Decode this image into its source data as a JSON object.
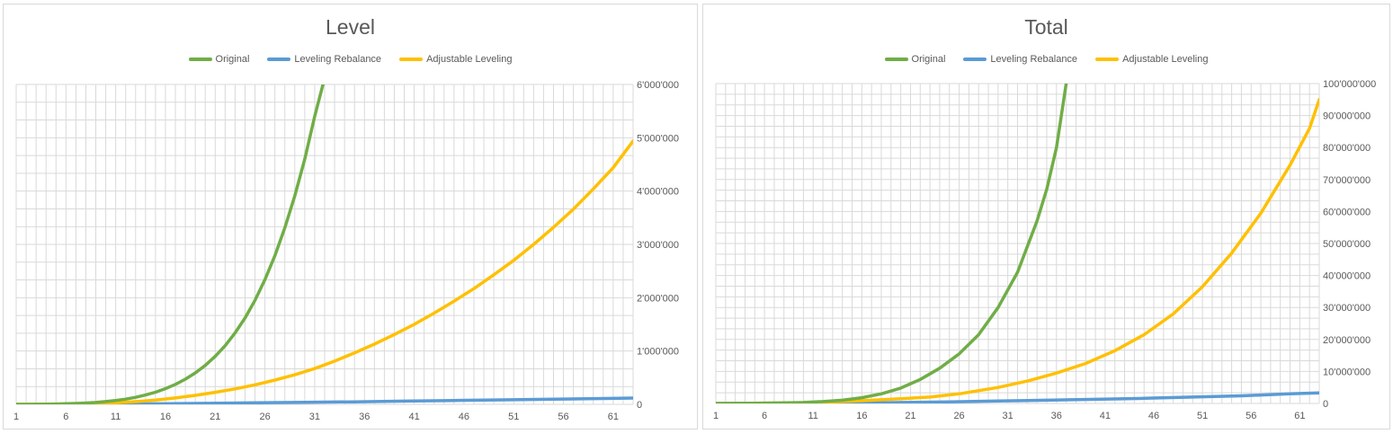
{
  "colors": {
    "original": "#70ad47",
    "leveling_rebalance": "#5b9bd5",
    "adjustable_leveling": "#ffc000",
    "gridline": "#d9d9d9",
    "text": "#595959"
  },
  "chart_data": [
    {
      "type": "line",
      "title": "Level",
      "xlabel": "",
      "ylabel": "",
      "x_tick_labels": [
        "1",
        "6",
        "11",
        "16",
        "21",
        "26",
        "31",
        "36",
        "41",
        "46",
        "51",
        "56",
        "61"
      ],
      "y_tick_labels": [
        "0",
        "1'000'000",
        "2'000'000",
        "3'000'000",
        "4'000'000",
        "5'000'000",
        "6'000'000"
      ],
      "xlim": [
        1,
        63
      ],
      "ylim": [
        0,
        6000000
      ],
      "grid": true,
      "legend_position": "top",
      "y_axis_side": "right",
      "series": [
        {
          "name": "Original",
          "color": "#70ad47",
          "x": [
            1,
            2,
            3,
            4,
            5,
            6,
            7,
            8,
            9,
            10,
            11,
            12,
            13,
            14,
            15,
            16,
            17,
            18,
            19,
            20,
            21,
            22,
            23,
            24,
            25,
            26,
            27,
            28,
            29,
            30,
            31,
            32
          ],
          "values": [
            0,
            0,
            2000,
            4000,
            7000,
            11000,
            17000,
            25000,
            36000,
            52000,
            72000,
            98000,
            132000,
            175000,
            228000,
            295000,
            375000,
            472000,
            590000,
            730000,
            900000,
            1100000,
            1340000,
            1620000,
            1950000,
            2340000,
            2790000,
            3310000,
            3910000,
            4600000,
            5400000,
            6300000
          ]
        },
        {
          "name": "Leveling Rebalance",
          "color": "#5b9bd5",
          "x": [
            1,
            5,
            10,
            15,
            20,
            25,
            30,
            35,
            40,
            45,
            50,
            55,
            60,
            63
          ],
          "values": [
            0,
            1000,
            4000,
            10000,
            18000,
            28000,
            38000,
            48000,
            60000,
            72000,
            84000,
            96000,
            110000,
            118000
          ]
        },
        {
          "name": "Adjustable Leveling",
          "color": "#ffc000",
          "x": [
            1,
            3,
            5,
            7,
            9,
            11,
            13,
            15,
            17,
            19,
            21,
            23,
            25,
            27,
            29,
            31,
            33,
            35,
            37,
            39,
            41,
            43,
            45,
            47,
            49,
            51,
            53,
            55,
            57,
            59,
            61,
            63
          ],
          "values": [
            0,
            1000,
            3000,
            8000,
            15000,
            28000,
            50000,
            80000,
            120000,
            168000,
            225000,
            290000,
            365000,
            455000,
            555000,
            670000,
            810000,
            965000,
            1130000,
            1310000,
            1500000,
            1710000,
            1935000,
            2170000,
            2430000,
            2700000,
            3000000,
            3320000,
            3660000,
            4040000,
            4440000,
            4940000
          ]
        }
      ]
    },
    {
      "type": "line",
      "title": "Total",
      "xlabel": "",
      "ylabel": "",
      "x_tick_labels": [
        "1",
        "6",
        "11",
        "16",
        "21",
        "26",
        "31",
        "36",
        "41",
        "46",
        "51",
        "56",
        "61"
      ],
      "y_tick_labels": [
        "0",
        "10'000'000",
        "20'000'000",
        "30'000'000",
        "40'000'000",
        "50'000'000",
        "60'000'000",
        "70'000'000",
        "80'000'000",
        "90'000'000",
        "100'000'000"
      ],
      "xlim": [
        1,
        63
      ],
      "ylim": [
        0,
        100000000
      ],
      "grid": true,
      "legend_position": "top",
      "y_axis_side": "right",
      "series": [
        {
          "name": "Original",
          "color": "#70ad47",
          "x": [
            1,
            5,
            10,
            12,
            14,
            16,
            18,
            20,
            22,
            24,
            26,
            28,
            30,
            32,
            34,
            35,
            36,
            37
          ],
          "values": [
            0,
            50000,
            300000,
            600000,
            1000000,
            1800000,
            3000000,
            4800000,
            7500000,
            11000000,
            15500000,
            21500000,
            30000000,
            41000000,
            57000000,
            67000000,
            80000000,
            100000000
          ]
        },
        {
          "name": "Leveling Rebalance",
          "color": "#5b9bd5",
          "x": [
            1,
            10,
            15,
            20,
            25,
            30,
            35,
            40,
            45,
            50,
            55,
            60,
            63
          ],
          "values": [
            0,
            50000,
            100000,
            300000,
            500000,
            800000,
            1000000,
            1300000,
            1600000,
            2000000,
            2400000,
            3000000,
            3300000
          ]
        },
        {
          "name": "Adjustable Leveling",
          "color": "#ffc000",
          "x": [
            1,
            5,
            10,
            15,
            20,
            23,
            26,
            30,
            33,
            36,
            39,
            42,
            45,
            48,
            51,
            54,
            57,
            60,
            62,
            63
          ],
          "values": [
            0,
            50000,
            200000,
            700000,
            1500000,
            2000000,
            3000000,
            5000000,
            7000000,
            9500000,
            12500000,
            16500000,
            21500000,
            28000000,
            36500000,
            47000000,
            59500000,
            74500000,
            86000000,
            95000000
          ]
        }
      ]
    }
  ]
}
